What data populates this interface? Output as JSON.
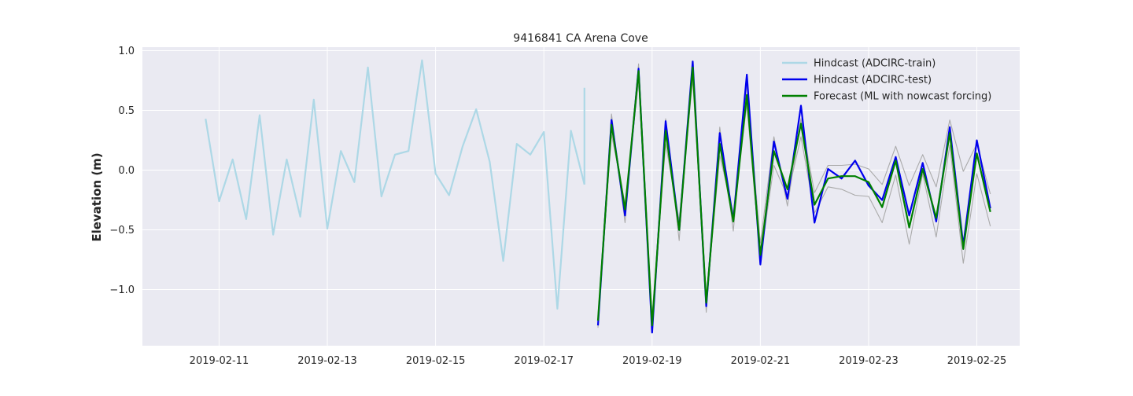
{
  "chart_data": {
    "type": "line",
    "title": "9416841 CA Arena Cove",
    "xlabel": "",
    "ylabel": "Elevation (m)",
    "x_ticks": [
      "2019-02-11",
      "2019-02-13",
      "2019-02-15",
      "2019-02-17",
      "2019-02-19",
      "2019-02-21",
      "2019-02-23",
      "2019-02-25"
    ],
    "y_ticks": [
      "−1.0",
      "−0.5",
      "0.0",
      "0.5",
      "1.0"
    ],
    "y_tick_values": [
      -1.0,
      -0.5,
      0.0,
      0.5,
      1.0
    ],
    "xlim": [
      "2019-02-09T14:00",
      "2019-02-25T19:00"
    ],
    "ylim": [
      -1.47,
      1.03
    ],
    "grid": true,
    "legend_position": "upper-right",
    "background": "#eaeaf2",
    "series": [
      {
        "name": "Hindcast (ADCIRC-train)",
        "color": "#add8e6",
        "width": 2.2,
        "x": [
          "2019-02-10T18:00",
          "2019-02-11T00:00",
          "2019-02-11T06:00",
          "2019-02-11T12:00",
          "2019-02-11T18:00",
          "2019-02-12T00:00",
          "2019-02-12T06:00",
          "2019-02-12T12:00",
          "2019-02-12T18:00",
          "2019-02-13T00:00",
          "2019-02-13T06:00",
          "2019-02-13T12:00",
          "2019-02-13T18:00",
          "2019-02-14T00:00",
          "2019-02-14T06:00",
          "2019-02-14T12:00",
          "2019-02-14T18:00",
          "2019-02-15T00:00",
          "2019-02-15T06:00",
          "2019-02-15T12:00",
          "2019-02-15T18:00",
          "2019-02-16T00:00",
          "2019-02-16T06:00",
          "2019-02-16T12:00",
          "2019-02-16T18:00",
          "2019-02-17T00:00",
          "2019-02-17T06:00",
          "2019-02-17T12:00",
          "2019-02-17T18:00"
        ],
        "y": [
          0.43,
          -0.26,
          0.09,
          -0.41,
          0.46,
          -0.54,
          0.09,
          -0.39,
          0.59,
          -0.49,
          0.16,
          -0.1,
          0.86,
          -0.22,
          0.13,
          0.16,
          0.92,
          -0.03,
          -0.21,
          0.2,
          0.51,
          0.07,
          -0.76,
          0.22,
          0.13,
          0.32,
          -1.16,
          0.33,
          -0.12
        ]
      },
      {
        "name": "",
        "color": "#add8e6",
        "width": 2.2,
        "x": [
          "2019-02-17T18:00",
          "2019-02-17T18:00"
        ],
        "y": [
          -0.12,
          0.69
        ]
      },
      {
        "name": "",
        "color": "#aaaaaa",
        "width": 1.1,
        "x": [
          "2019-02-18T00:00",
          "2019-02-18T06:00",
          "2019-02-18T12:00",
          "2019-02-18T18:00",
          "2019-02-19T00:00",
          "2019-02-19T06:00",
          "2019-02-19T12:00",
          "2019-02-19T18:00",
          "2019-02-20T00:00",
          "2019-02-20T06:00",
          "2019-02-20T12:00",
          "2019-02-20T18:00",
          "2019-02-21T00:00",
          "2019-02-21T06:00",
          "2019-02-21T12:00",
          "2019-02-21T18:00",
          "2019-02-22T00:00",
          "2019-02-22T06:00",
          "2019-02-22T12:00",
          "2019-02-22T18:00",
          "2019-02-23T00:00",
          "2019-02-23T06:00",
          "2019-02-23T12:00",
          "2019-02-23T18:00",
          "2019-02-24T00:00",
          "2019-02-24T06:00",
          "2019-02-24T12:00",
          "2019-02-24T18:00",
          "2019-02-25T00:00",
          "2019-02-25T06:00"
        ],
        "y": [
          -1.32,
          0.47,
          -0.44,
          0.89,
          -1.32,
          0.43,
          -0.59,
          0.91,
          -1.19,
          0.36,
          -0.51,
          0.72,
          -0.61,
          0.28,
          -0.3,
          0.43,
          -0.19,
          0.04,
          0.04,
          0.05,
          0.01,
          -0.12,
          0.2,
          -0.13,
          0.13,
          -0.14,
          0.42,
          -0.01,
          0.22,
          -0.2
        ]
      },
      {
        "name": "",
        "color": "#aaaaaa",
        "width": 1.1,
        "x": [
          "2019-02-18T00:00",
          "2019-02-18T06:00",
          "2019-02-18T12:00",
          "2019-02-18T18:00",
          "2019-02-19T00:00",
          "2019-02-19T06:00",
          "2019-02-19T12:00",
          "2019-02-19T18:00",
          "2019-02-20T00:00",
          "2019-02-20T06:00",
          "2019-02-20T12:00",
          "2019-02-20T18:00",
          "2019-02-21T00:00",
          "2019-02-21T06:00",
          "2019-02-21T12:00",
          "2019-02-21T18:00",
          "2019-02-22T00:00",
          "2019-02-22T06:00",
          "2019-02-22T12:00",
          "2019-02-22T18:00",
          "2019-02-23T00:00",
          "2019-02-23T06:00",
          "2019-02-23T12:00",
          "2019-02-23T18:00",
          "2019-02-24T00:00",
          "2019-02-24T06:00",
          "2019-02-24T12:00",
          "2019-02-24T18:00",
          "2019-02-25T00:00",
          "2019-02-25T06:00"
        ],
        "y": [
          -1.22,
          0.3,
          -0.28,
          0.74,
          -1.22,
          0.22,
          -0.42,
          0.76,
          -1.1,
          0.12,
          -0.36,
          0.55,
          -0.75,
          0.04,
          -0.22,
          0.28,
          -0.36,
          -0.14,
          -0.16,
          -0.21,
          -0.22,
          -0.44,
          -0.04,
          -0.62,
          -0.03,
          -0.56,
          0.21,
          -0.78,
          -0.03,
          -0.47
        ]
      },
      {
        "name": "Hindcast (ADCIRC-test)",
        "color": "#0000ee",
        "width": 2.2,
        "x": [
          "2019-02-18T00:00",
          "2019-02-18T06:00",
          "2019-02-18T12:00",
          "2019-02-18T18:00",
          "2019-02-19T00:00",
          "2019-02-19T06:00",
          "2019-02-19T12:00",
          "2019-02-19T18:00",
          "2019-02-20T00:00",
          "2019-02-20T06:00",
          "2019-02-20T12:00",
          "2019-02-20T18:00",
          "2019-02-21T00:00",
          "2019-02-21T06:00",
          "2019-02-21T12:00",
          "2019-02-21T18:00",
          "2019-02-22T00:00",
          "2019-02-22T06:00",
          "2019-02-22T12:00",
          "2019-02-22T18:00",
          "2019-02-23T00:00",
          "2019-02-23T06:00",
          "2019-02-23T12:00",
          "2019-02-23T18:00",
          "2019-02-24T00:00",
          "2019-02-24T06:00",
          "2019-02-24T12:00",
          "2019-02-24T18:00",
          "2019-02-25T00:00",
          "2019-02-25T06:00"
        ],
        "y": [
          -1.3,
          0.42,
          -0.38,
          0.85,
          -1.36,
          0.41,
          -0.5,
          0.91,
          -1.14,
          0.31,
          -0.42,
          0.8,
          -0.79,
          0.24,
          -0.24,
          0.54,
          -0.44,
          0.01,
          -0.07,
          0.08,
          -0.13,
          -0.25,
          0.11,
          -0.38,
          0.06,
          -0.43,
          0.36,
          -0.63,
          0.25,
          -0.32
        ]
      },
      {
        "name": "Forecast (ML with nowcast forcing)",
        "color": "#008000",
        "width": 2.2,
        "x": [
          "2019-02-18T00:00",
          "2019-02-18T06:00",
          "2019-02-18T12:00",
          "2019-02-18T18:00",
          "2019-02-19T00:00",
          "2019-02-19T06:00",
          "2019-02-19T12:00",
          "2019-02-19T18:00",
          "2019-02-20T00:00",
          "2019-02-20T06:00",
          "2019-02-20T12:00",
          "2019-02-20T18:00",
          "2019-02-21T00:00",
          "2019-02-21T06:00",
          "2019-02-21T12:00",
          "2019-02-21T18:00",
          "2019-02-22T00:00",
          "2019-02-22T06:00",
          "2019-02-22T12:00",
          "2019-02-22T18:00",
          "2019-02-23T00:00",
          "2019-02-23T06:00",
          "2019-02-23T12:00",
          "2019-02-23T18:00",
          "2019-02-24T00:00",
          "2019-02-24T06:00",
          "2019-02-24T12:00",
          "2019-02-24T18:00",
          "2019-02-25T00:00",
          "2019-02-25T06:00"
        ],
        "y": [
          -1.26,
          0.38,
          -0.33,
          0.83,
          -1.3,
          0.33,
          -0.5,
          0.86,
          -1.11,
          0.22,
          -0.43,
          0.63,
          -0.71,
          0.16,
          -0.16,
          0.39,
          -0.29,
          -0.07,
          -0.05,
          -0.05,
          -0.1,
          -0.31,
          0.08,
          -0.48,
          0.01,
          -0.4,
          0.31,
          -0.66,
          0.14,
          -0.35
        ]
      }
    ],
    "legend": [
      {
        "label": "Hindcast (ADCIRC-train)",
        "color": "#add8e6"
      },
      {
        "label": "Hindcast (ADCIRC-test)",
        "color": "#0000ee"
      },
      {
        "label": "Forecast (ML with nowcast forcing)",
        "color": "#008000"
      }
    ]
  }
}
